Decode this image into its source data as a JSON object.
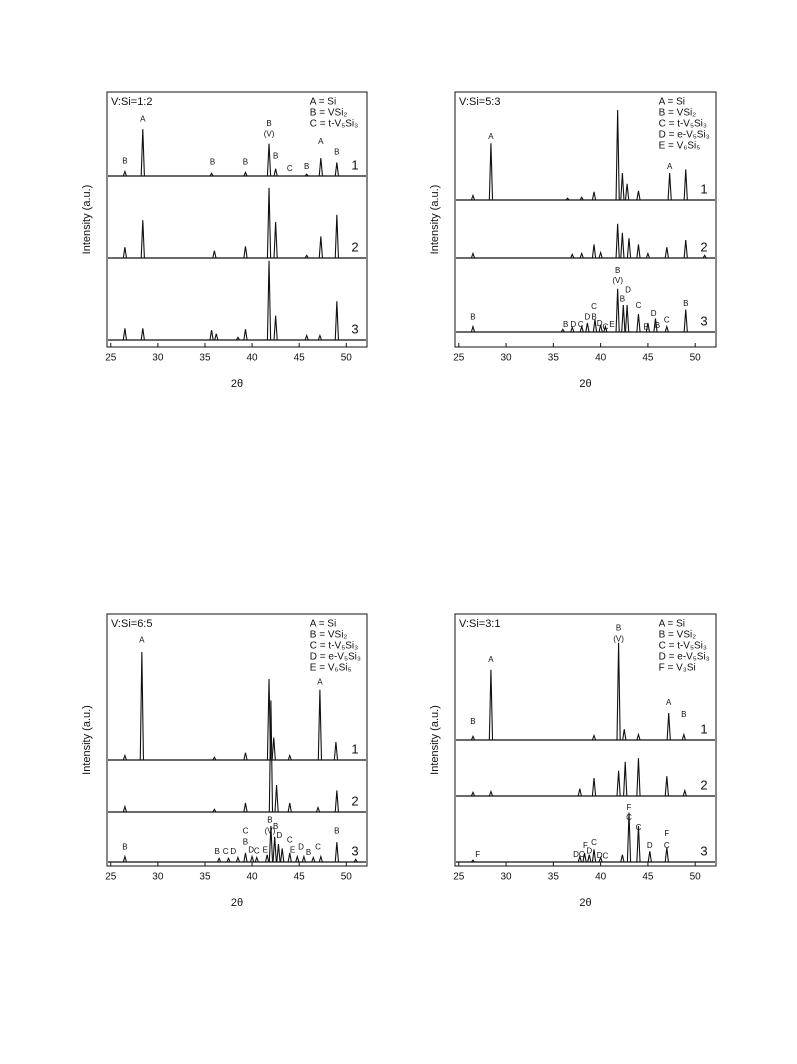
{
  "chart_data": [
    {
      "type": "spectrum",
      "title": "V:Si=1:2",
      "legend": [
        "A = Si",
        "B = VSi₂",
        "C = t-V₅Si₃"
      ],
      "x_label": "2θ",
      "y_label": "Intensity (a.u.)",
      "xlim": [
        24.6,
        52.2
      ],
      "xticks": [
        25,
        30,
        35,
        40,
        45,
        50
      ],
      "series": [
        {
          "name": "1",
          "color": "#111111",
          "x": [
            26.5,
            28.4,
            35.7,
            39.3,
            41.8,
            42.5,
            45.8,
            47.3,
            49.0
          ],
          "values": [
            5,
            52,
            3,
            4,
            36,
            8,
            2,
            20,
            15
          ],
          "annotations": [
            {
              "label": "B",
              "x": 26.5,
              "y": 16
            },
            {
              "label": "A",
              "x": 28.4,
              "y": 63
            },
            {
              "label": "B",
              "x": 35.8,
              "y": 15
            },
            {
              "label": "B",
              "x": 39.3,
              "y": 15
            },
            {
              "label": "B",
              "x": 41.8,
              "y": 58
            },
            {
              "label": "(V)",
              "x": 41.8,
              "y": 46
            },
            {
              "label": "B",
              "x": 42.5,
              "y": 22
            },
            {
              "label": "C",
              "x": 44.0,
              "y": 8
            },
            {
              "label": "B",
              "x": 45.8,
              "y": 10
            },
            {
              "label": "A",
              "x": 47.3,
              "y": 38
            },
            {
              "label": "B",
              "x": 49.0,
              "y": 26
            }
          ]
        },
        {
          "name": "2",
          "color": "#111111",
          "x": [
            26.5,
            28.4,
            36.0,
            39.3,
            41.8,
            42.5,
            45.8,
            47.3,
            49.0
          ],
          "values": [
            12,
            42,
            8,
            13,
            78,
            40,
            3,
            24,
            48
          ],
          "annotations": []
        },
        {
          "name": "3",
          "color": "#111111",
          "x": [
            26.5,
            28.4,
            35.7,
            36.2,
            38.5,
            39.3,
            41.8,
            42.5,
            45.8,
            47.2,
            49.0
          ],
          "values": [
            13,
            13,
            11,
            7,
            3,
            12,
            88,
            27,
            5,
            5,
            43
          ],
          "annotations": []
        }
      ]
    },
    {
      "type": "spectrum",
      "title": "V:Si=5:3",
      "legend": [
        "A = Si",
        "B = VSi₂",
        "C = t-V₅Si₃",
        "D = e-V₅Si₃",
        "E = V₆Si₅"
      ],
      "x_label": "2θ",
      "y_label": "Intensity (a.u.)",
      "xlim": [
        24.6,
        52.2
      ],
      "xticks": [
        25,
        30,
        35,
        40,
        45,
        50
      ],
      "series": [
        {
          "name": "1",
          "color": "#111111",
          "x": [
            26.5,
            28.4,
            36.5,
            38.0,
            39.3,
            41.8,
            42.3,
            42.8,
            44.0,
            47.3,
            49.0
          ],
          "values": [
            5,
            63,
            2,
            3,
            9,
            100,
            30,
            18,
            10,
            30,
            34
          ],
          "annotations": [
            {
              "label": "A",
              "x": 28.4,
              "y": 70
            },
            {
              "label": "A",
              "x": 47.3,
              "y": 37
            }
          ]
        },
        {
          "name": "2",
          "color": "#111111",
          "x": [
            26.5,
            37.0,
            38.0,
            39.3,
            40.0,
            41.8,
            42.3,
            43.0,
            44.0,
            45.0,
            47.0,
            49.0,
            51.0
          ],
          "values": [
            5,
            4,
            5,
            15,
            6,
            38,
            28,
            22,
            15,
            5,
            12,
            20,
            3
          ],
          "annotations": []
        },
        {
          "name": "3",
          "color": "#111111",
          "x": [
            26.5,
            36.0,
            37.0,
            38.0,
            38.6,
            39.4,
            40.0,
            40.5,
            41.8,
            42.4,
            42.8,
            44.0,
            45.0,
            45.8,
            47.0,
            49.0
          ],
          "values": [
            6,
            3,
            5,
            6,
            10,
            14,
            8,
            6,
            48,
            30,
            30,
            20,
            10,
            15,
            6,
            25
          ],
          "annotations": [
            {
              "label": "B",
              "x": 26.5,
              "y": 16
            },
            {
              "label": "B",
              "x": 36.3,
              "y": 8
            },
            {
              "label": "D",
              "x": 37.1,
              "y": 8
            },
            {
              "label": "C",
              "x": 37.9,
              "y": 8
            },
            {
              "label": "D",
              "x": 38.6,
              "y": 16
            },
            {
              "label": "C",
              "x": 39.3,
              "y": 28
            },
            {
              "label": "B",
              "x": 39.3,
              "y": 16
            },
            {
              "label": "D",
              "x": 39.9,
              "y": 9
            },
            {
              "label": "C",
              "x": 40.5,
              "y": 5
            },
            {
              "label": "E",
              "x": 41.2,
              "y": 8
            },
            {
              "label": "B",
              "x": 41.8,
              "y": 68
            },
            {
              "label": "(V)",
              "x": 41.8,
              "y": 57
            },
            {
              "label": "B",
              "x": 42.3,
              "y": 36
            },
            {
              "label": "D",
              "x": 42.9,
              "y": 46
            },
            {
              "label": "C",
              "x": 44.0,
              "y": 29
            },
            {
              "label": "E",
              "x": 44.8,
              "y": 5
            },
            {
              "label": "D",
              "x": 45.6,
              "y": 20
            },
            {
              "label": "B",
              "x": 46.0,
              "y": 7
            },
            {
              "label": "C",
              "x": 47.0,
              "y": 13
            },
            {
              "label": "B",
              "x": 49.0,
              "y": 31
            }
          ]
        }
      ]
    },
    {
      "type": "spectrum",
      "title": "V:Si=6:5",
      "legend": [
        "A = Si",
        "B = VSi₂",
        "C = t-V₅Si₃",
        "D = e-V₅Si₃",
        "E = V₆Si₅"
      ],
      "x_label": "2θ",
      "y_label": "Intensity (a.u.)",
      "xlim": [
        24.6,
        52.2
      ],
      "xticks": [
        25,
        30,
        35,
        40,
        45,
        50
      ],
      "series": [
        {
          "name": "1",
          "color": "#111111",
          "x": [
            26.5,
            28.3,
            36.0,
            39.3,
            41.8,
            42.3,
            44.0,
            47.2,
            48.9
          ],
          "values": [
            5,
            120,
            3,
            8,
            90,
            25,
            5,
            78,
            20
          ],
          "annotations": [
            {
              "label": "A",
              "x": 28.3,
              "y": 133
            },
            {
              "label": "A",
              "x": 47.2,
              "y": 86
            }
          ]
        },
        {
          "name": "2",
          "color": "#111111",
          "x": [
            26.5,
            36.0,
            39.3,
            42.0,
            42.6,
            44.0,
            47.0,
            49.0
          ],
          "values": [
            6,
            3,
            10,
            124,
            30,
            10,
            5,
            24
          ],
          "annotations": []
        },
        {
          "name": "3",
          "color": "#111111",
          "x": [
            26.5,
            36.5,
            37.5,
            38.5,
            39.3,
            40.0,
            40.5,
            41.6,
            42.0,
            42.4,
            42.8,
            43.2,
            44.0,
            44.8,
            45.5,
            46.5,
            47.3,
            49.0,
            51.0
          ],
          "values": [
            6,
            4,
            4,
            5,
            10,
            6,
            5,
            8,
            40,
            28,
            20,
            15,
            10,
            6,
            6,
            5,
            6,
            22,
            3
          ],
          "annotations": [
            {
              "label": "B",
              "x": 26.5,
              "y": 16
            },
            {
              "label": "B",
              "x": 36.3,
              "y": 11
            },
            {
              "label": "C",
              "x": 37.2,
              "y": 11
            },
            {
              "label": "D",
              "x": 38.0,
              "y": 11
            },
            {
              "label": "C",
              "x": 39.3,
              "y": 34
            },
            {
              "label": "B",
              "x": 39.3,
              "y": 22
            },
            {
              "label": "D",
              "x": 39.9,
              "y": 13
            },
            {
              "label": "C",
              "x": 40.5,
              "y": 12
            },
            {
              "label": "E",
              "x": 41.4,
              "y": 13
            },
            {
              "label": "B",
              "x": 41.9,
              "y": 46
            },
            {
              "label": "(V)",
              "x": 41.9,
              "y": 34
            },
            {
              "label": "B",
              "x": 42.5,
              "y": 39
            },
            {
              "label": "D",
              "x": 42.9,
              "y": 29
            },
            {
              "label": "C",
              "x": 44.0,
              "y": 24
            },
            {
              "label": "E",
              "x": 44.3,
              "y": 13
            },
            {
              "label": "D",
              "x": 45.2,
              "y": 16
            },
            {
              "label": "B",
              "x": 46.0,
              "y": 10
            },
            {
              "label": "C",
              "x": 47.0,
              "y": 16
            },
            {
              "label": "B",
              "x": 49.0,
              "y": 34
            }
          ]
        }
      ]
    },
    {
      "type": "spectrum",
      "title": "V:Si=3:1",
      "legend": [
        "A = Si",
        "B = VSi₂",
        "C = t-V₅Si₃",
        "D = e-V₅Si₃",
        "F = V₃Si"
      ],
      "x_label": "2θ",
      "y_label": "Intensity (a.u.)",
      "xlim": [
        24.6,
        52.2
      ],
      "xticks": [
        25,
        30,
        35,
        40,
        45,
        50
      ],
      "series": [
        {
          "name": "1",
          "color": "#111111",
          "x": [
            26.5,
            28.4,
            39.3,
            41.9,
            42.5,
            44.0,
            47.2,
            48.8
          ],
          "values": [
            4,
            78,
            5,
            108,
            12,
            6,
            30,
            6
          ],
          "annotations": [
            {
              "label": "B",
              "x": 26.5,
              "y": 20
            },
            {
              "label": "A",
              "x": 28.4,
              "y": 89
            },
            {
              "label": "B",
              "x": 41.9,
              "y": 124
            },
            {
              "label": "(V)",
              "x": 41.9,
              "y": 112
            },
            {
              "label": "A",
              "x": 47.2,
              "y": 41
            },
            {
              "label": "B",
              "x": 48.8,
              "y": 28
            }
          ]
        },
        {
          "name": "2",
          "color": "#111111",
          "x": [
            26.5,
            28.4,
            37.8,
            39.3,
            41.9,
            42.6,
            44.0,
            47.0,
            48.9
          ],
          "values": [
            4,
            5,
            8,
            20,
            28,
            38,
            42,
            22,
            6
          ],
          "annotations": []
        },
        {
          "name": "3",
          "color": "#111111",
          "x": [
            26.5,
            37.8,
            38.3,
            38.8,
            39.3,
            40.0,
            42.3,
            43.0,
            44.0,
            45.2,
            47.0
          ],
          "values": [
            2,
            6,
            10,
            8,
            14,
            5,
            8,
            55,
            40,
            12,
            16
          ],
          "annotations": [
            {
              "label": "F",
              "x": 27.0,
              "y": 8
            },
            {
              "label": "DC",
              "x": 37.7,
              "y": 8
            },
            {
              "label": "F",
              "x": 38.4,
              "y": 18
            },
            {
              "label": "D",
              "x": 38.8,
              "y": 12
            },
            {
              "label": "C",
              "x": 39.3,
              "y": 21
            },
            {
              "label": "D",
              "x": 39.9,
              "y": 7
            },
            {
              "label": "C",
              "x": 40.5,
              "y": 6
            },
            {
              "label": "F",
              "x": 43.0,
              "y": 60
            },
            {
              "label": "C",
              "x": 43.0,
              "y": 49
            },
            {
              "label": "C",
              "x": 44.0,
              "y": 38
            },
            {
              "label": "D",
              "x": 45.2,
              "y": 18
            },
            {
              "label": "F",
              "x": 47.0,
              "y": 31
            },
            {
              "label": "C",
              "x": 47.0,
              "y": 18
            }
          ]
        }
      ]
    }
  ]
}
